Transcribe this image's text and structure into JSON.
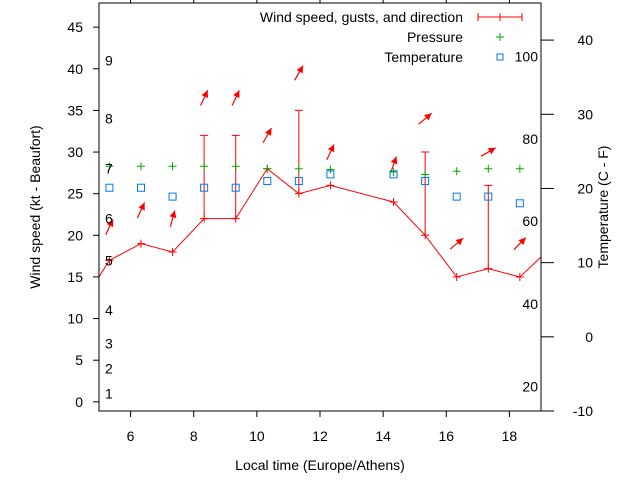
{
  "chart_data": {
    "type": "line",
    "title": "",
    "xlabel": "Local time (Europe/Athens)",
    "ylabel": "Wind speed (kt - Beaufort)",
    "y2label": "Temperature (C - F)",
    "xlim": [
      5,
      19
    ],
    "ylim": [
      -1.1,
      47.9
    ],
    "y2lim": [
      -10,
      45
    ],
    "grid": false,
    "legend_placement": "top-right",
    "x_ticks": [
      6,
      8,
      10,
      12,
      14,
      16,
      18
    ],
    "y_ticks": [
      0,
      5,
      10,
      15,
      20,
      25,
      30,
      35,
      40,
      45
    ],
    "y2_ticks": [
      -10,
      0,
      10,
      20,
      30,
      40
    ],
    "beaufort_labels": [
      {
        "label": "1",
        "speed": 1
      },
      {
        "label": "2",
        "speed": 4
      },
      {
        "label": "3",
        "speed": 7
      },
      {
        "label": "4",
        "speed": 11
      },
      {
        "label": "5",
        "speed": 17
      },
      {
        "label": "6",
        "speed": 22
      },
      {
        "label": "7",
        "speed": 28
      },
      {
        "label": "8",
        "speed": 34
      },
      {
        "label": "9",
        "speed": 41
      }
    ],
    "fahrenheit_labels": [
      {
        "label": "20",
        "celsius": -6.7
      },
      {
        "label": "40",
        "celsius": 4.4
      },
      {
        "label": "60",
        "celsius": 15.6
      },
      {
        "label": "80",
        "celsius": 26.7
      },
      {
        "label": "100",
        "celsius": 37.8
      }
    ],
    "legend": [
      "Wind speed, gusts, and direction",
      "Pressure",
      "Temperature"
    ],
    "colors": {
      "wind": "#ff0000",
      "pressure": "#00aa00",
      "temperature": "#0077ee"
    },
    "series": [
      {
        "name": "Wind speed, gusts, and direction",
        "x": [
          5.0,
          5.33,
          6.33,
          7.33,
          8.33,
          9.33,
          10.33,
          11.33,
          12.33,
          14.33,
          15.33,
          16.33,
          17.33,
          18.33,
          19.0
        ],
        "values": [
          15,
          17,
          19,
          18,
          22,
          22,
          28,
          25,
          26,
          24,
          20,
          15,
          16,
          15,
          17.4
        ],
        "gusts": [
          null,
          null,
          null,
          null,
          32,
          32,
          null,
          35,
          null,
          null,
          30,
          null,
          26,
          null,
          null
        ]
      },
      {
        "name": "Wind direction arrows",
        "x": [
          5.33,
          6.33,
          7.33,
          8.33,
          9.33,
          10.33,
          11.33,
          12.33,
          14.33,
          15.33,
          16.33,
          17.33,
          18.33
        ],
        "values": [
          21,
          23,
          22,
          36.5,
          36.5,
          32,
          39.5,
          30,
          28.5,
          34,
          19,
          30,
          19
        ],
        "direction_deg": [
          25,
          25,
          15,
          25,
          25,
          30,
          30,
          25,
          20,
          50,
          50,
          60,
          45
        ]
      },
      {
        "name": "Pressure",
        "x": [
          5.33,
          6.33,
          7.33,
          8.33,
          9.33,
          10.33,
          11.33,
          12.33,
          14.33,
          15.33,
          16.33,
          17.33,
          18.33
        ],
        "values": [
          28.3,
          28.3,
          28.3,
          28.3,
          28.3,
          28.0,
          28.0,
          27.9,
          27.6,
          27.3,
          27.7,
          28.0,
          28.0
        ]
      },
      {
        "name": "Temperature",
        "axis": "y2",
        "x": [
          5.33,
          6.33,
          7.33,
          8.33,
          9.33,
          10.33,
          11.33,
          12.33,
          14.33,
          15.33,
          16.33,
          17.33,
          18.33
        ],
        "values": [
          20.1,
          20.1,
          18.9,
          20.1,
          20.1,
          21.0,
          21.0,
          21.9,
          21.9,
          21.0,
          18.9,
          18.9,
          18.0
        ]
      }
    ]
  }
}
